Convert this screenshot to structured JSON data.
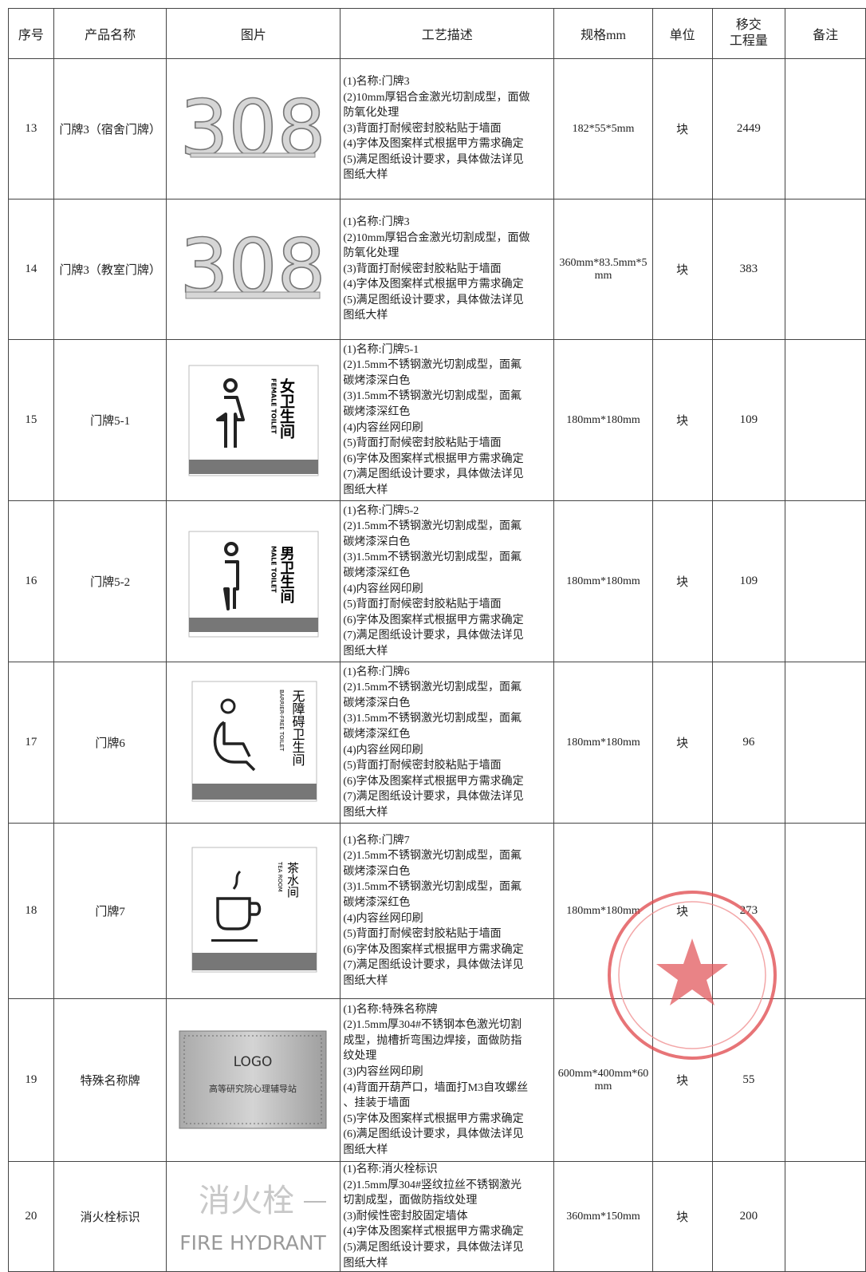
{
  "table": {
    "header": [
      "序号",
      "产品名称",
      "图片",
      "工艺描述",
      "规格mm",
      "单位",
      [
        "移交",
        "工程量"
      ],
      "备注"
    ],
    "rows": [
      {
        "no": 13,
        "name": "门牌3（宿舍门牌）",
        "picture": [
          "308"
        ],
        "description": [
          "(1)名称:门牌3",
          "(2)10mm厚铝合金激光切割成型，面做",
          "防氧化处理",
          "(3)背面打耐候密封胶粘贴于墙面",
          "(4)字体及图案样式根据甲方需求确定",
          "(5)满足图纸设计要求，具体做法详见",
          "图纸大样"
        ],
        "spec": "182*55*5mm",
        "unit": "块",
        "quantity": 2449
      },
      {
        "no": 14,
        "name": "门牌3（教室门牌）",
        "picture": [
          "308"
        ],
        "description": [
          "(1)名称:门牌3",
          "(2)10mm厚铝合金激光切割成型，面做",
          "防氧化处理",
          "(3)背面打耐候密封胶粘贴于墙面",
          "(4)字体及图案样式根据甲方需求确定",
          "(5)满足图纸设计要求，具体做法详见",
          "图纸大样"
        ],
        "spec": "360mm*83.5mm*5mm",
        "unit": "块",
        "quantity": 383
      },
      {
        "no": 15,
        "name": "门牌5-1",
        "picture": [
          "女卫生间",
          "FEMALE TOILET"
        ],
        "description": [
          "(1)名称:门牌5-1",
          "(2)1.5mm不锈钢激光切割成型，面氟",
          "碳烤漆深白色",
          "(3)1.5mm不锈钢激光切割成型，面氟",
          "碳烤漆深红色",
          "(4)内容丝网印刷",
          "(5)背面打耐候密封胶粘贴于墙面",
          "(6)字体及图案样式根据甲方需求确定",
          "(7)满足图纸设计要求，具体做法详见",
          "图纸大样"
        ],
        "spec": "180mm*180mm",
        "unit": "块",
        "quantity": 109
      },
      {
        "no": 16,
        "name": "门牌5-2",
        "picture": [
          "男卫生间",
          "MALE TOILET"
        ],
        "description": [
          "(1)名称:门牌5-2",
          "(2)1.5mm不锈钢激光切割成型，面氟",
          "碳烤漆深白色",
          "(3)1.5mm不锈钢激光切割成型，面氟",
          "碳烤漆深红色",
          "(4)内容丝网印刷",
          "(5)背面打耐候密封胶粘贴于墙面",
          "(6)字体及图案样式根据甲方需求确定",
          "(7)满足图纸设计要求，具体做法详见",
          "图纸大样"
        ],
        "spec": "180mm*180mm",
        "unit": "块",
        "quantity": 109
      },
      {
        "no": 17,
        "name": "门牌6",
        "picture": [
          "无障碍卫生间",
          "BARRIER-FREE TOILET"
        ],
        "description": [
          "(1)名称:门牌6",
          "(2)1.5mm不锈钢激光切割成型，面氟",
          "碳烤漆深白色",
          "(3)1.5mm不锈钢激光切割成型，面氟",
          "碳烤漆深红色",
          "(4)内容丝网印刷",
          "(5)背面打耐候密封胶粘贴于墙面",
          "(6)字体及图案样式根据甲方需求确定",
          "(7)满足图纸设计要求，具体做法详见",
          "图纸大样"
        ],
        "spec": "180mm*180mm",
        "unit": "块",
        "quantity": 96
      },
      {
        "no": 18,
        "name": "门牌7",
        "picture": [
          "茶水间",
          "TEA ROOM"
        ],
        "description": [
          "(1)名称:门牌7",
          "(2)1.5mm不锈钢激光切割成型，面氟",
          "碳烤漆深白色",
          "(3)1.5mm不锈钢激光切割成型，面氟",
          "碳烤漆深红色",
          "(4)内容丝网印刷",
          "(5)背面打耐候密封胶粘贴于墙面",
          "(6)字体及图案样式根据甲方需求确定",
          "(7)满足图纸设计要求，具体做法详见",
          "图纸大样"
        ],
        "spec": "180mm*180mm",
        "unit": "块",
        "quantity": 273
      },
      {
        "no": 19,
        "name": "特殊名称牌",
        "picture": [
          "LOGO",
          "高等研究院心理辅导站"
        ],
        "description": [
          "(1)名称:特殊名称牌",
          "(2)1.5mm厚304#不锈钢本色激光切割",
          "成型，抛槽折弯围边焊接，面做防指",
          "纹处理",
          "(3)内容丝网印刷",
          "(4)背面开葫芦口，墙面打M3自攻螺丝",
          "、挂装于墙面",
          "(5)字体及图案样式根据甲方需求确定",
          "(6)满足图纸设计要求，具体做法详见",
          "图纸大样"
        ],
        "spec": "600mm*400mm*60mm",
        "unit": "块",
        "quantity": 55
      },
      {
        "no": 20,
        "name": "消火栓标识",
        "picture": [
          "消火栓",
          "FIRE HYDRANT"
        ],
        "description": [
          "(1)名称:消火栓标识",
          "(2)1.5mm厚304#竖纹拉丝不锈钢激光",
          "切割成型，面做防指纹处理",
          "(3)耐候性密封胶固定墙体",
          "(4)字体及图案样式根据甲方需求确定",
          "(5)满足图纸设计要求，具体做法详见",
          "图纸大样"
        ],
        "spec": "360mm*150mm",
        "unit": "块",
        "quantity": 200
      }
    ]
  }
}
